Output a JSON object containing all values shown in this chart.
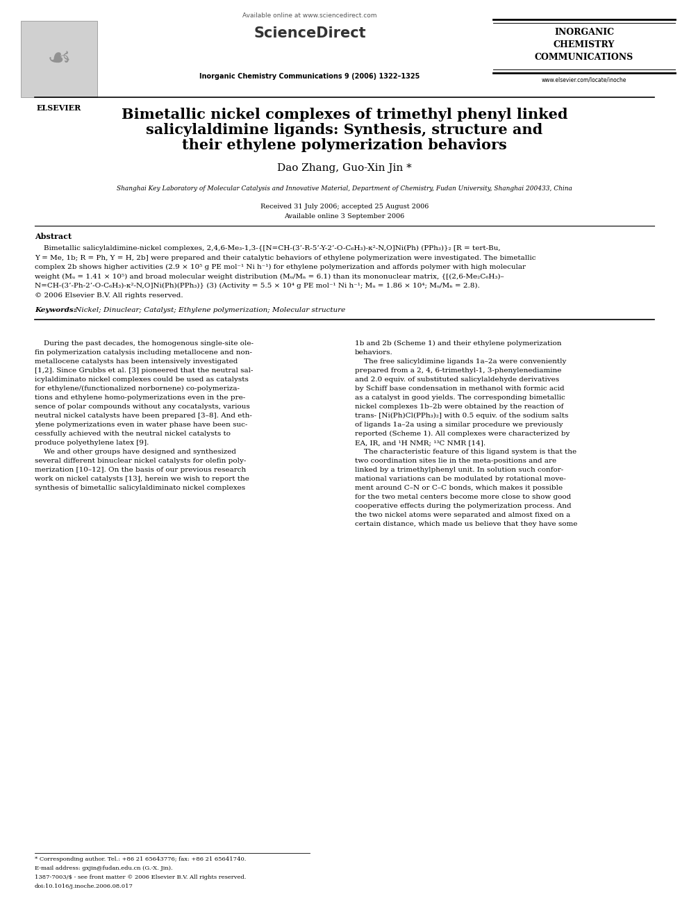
{
  "bg_color": "#ffffff",
  "page_width": 9.92,
  "page_height": 13.23,
  "dpi": 100,
  "header": {
    "available_online": "Available online at www.sciencedirect.com",
    "sciencedirect": "ScienceDirect",
    "journal_name": "Inorganic Chemistry Communications 9 (2006) 1322–1325",
    "elsevier": "ELSEVIER",
    "icc_line1": "INORGANIC",
    "icc_line2": "CHEMISTRY",
    "icc_line3": "COMMUNICATIONS",
    "website": "www.elsevier.com/locate/inoche"
  },
  "title_line1": "Bimetallic nickel complexes of trimethyl phenyl linked",
  "title_line2": "salicylaldimine ligands: Synthesis, structure and",
  "title_line3": "their ethylene polymerization behaviors",
  "authors": "Dao Zhang, Guo-Xin Jin *",
  "affiliation": "Shanghai Key Laboratory of Molecular Catalysis and Innovative Material, Department of Chemistry, Fudan University, Shanghai 200433, China",
  "received": "Received 31 July 2006; accepted 25 August 2006",
  "available_online_date": "Available online 3 September 2006",
  "abstract_title": "Abstract",
  "abstract_indent": "    Bimetallic salicylaldimine-nickel complexes, 2,4,6-Me₃-1,3-{[N=CH-(3’-R-5’-Y-2’-O-C₆H₃)-κ²-N,O]Ni(Ph) (PPh₃)}₂ [R = tert-Bu,\nY = Me, 1b; R = Ph, Y = H, 2b] were prepared and their catalytic behaviors of ethylene polymerization were investigated. The bimetallic\ncomplex 2b shows higher activities (2.9 × 10⁵ g PE mol⁻¹ Ni h⁻¹) for ethylene polymerization and affords polymer with high molecular\nweight (Mᵤ = 1.41 × 10⁵) and broad molecular weight distribution (Mᵤ/Mₙ = 6.1) than its mononuclear matrix, {[(2,6-Me₂C₆H₃)–\nN=CH-(3’-Ph-2’-O-C₆H₃)-κ²-N,O]Ni(Ph)(PPh₃)} (3) (Activity = 5.5 × 10⁴ g PE mol⁻¹ Ni h⁻¹; Mᵤ = 1.86 × 10⁴; Mᵤ/Mₙ = 2.8).\n© 2006 Elsevier B.V. All rights reserved.",
  "keywords_label": "Keywords: ",
  "keywords_text": " Nickel; Dinuclear; Catalyst; Ethylene polymerization; Molecular structure",
  "body_col1_lines": [
    "    During the past decades, the homogenous single-site ole-",
    "fin polymerization catalysis including metallocene and non-",
    "metallocene catalysts has been intensively investigated",
    "[1,2]. Since Grubbs et al. [3] pioneered that the neutral sal-",
    "icylaldiminato nickel complexes could be used as catalysts",
    "for ethylene/(functionalized norbornene) co-polymeriza-",
    "tions and ethylene homo-polymerizations even in the pre-",
    "sence of polar compounds without any cocatalysts, various",
    "neutral nickel catalysts have been prepared [3–8]. And eth-",
    "ylene polymerizations even in water phase have been suc-",
    "cessfully achieved with the neutral nickel catalysts to",
    "produce polyethylene latex [9].",
    "    We and other groups have designed and synthesized",
    "several different binuclear nickel catalysts for olefin poly-",
    "merization [10–12]. On the basis of our previous research",
    "work on nickel catalysts [13], herein we wish to report the",
    "synthesis of bimetallic salicylaldiminato nickel complexes"
  ],
  "body_col2_lines": [
    "1b and 2b (Scheme 1) and their ethylene polymerization",
    "behaviors.",
    "    The free salicyldimine ligands 1a–2a were conveniently",
    "prepared from a 2, 4, 6-trimethyl-1, 3-phenylenediamine",
    "and 2.0 equiv. of substituted salicylaldehyde derivatives",
    "by Schiff base condensation in methanol with formic acid",
    "as a catalyst in good yields. The corresponding bimetallic",
    "nickel complexes 1b–2b were obtained by the reaction of",
    "trans- [Ni(Ph)Cl(PPh₃)₂] with 0.5 equiv. of the sodium salts",
    "of ligands 1a–2a using a similar procedure we previously",
    "reported (Scheme 1). All complexes were characterized by",
    "EA, IR, and ¹H NMR; ¹³C NMR [14].",
    "    The characteristic feature of this ligand system is that the",
    "two coordination sites lie in the meta-positions and are",
    "linked by a trimethylphenyl unit. In solution such confor-",
    "mational variations can be modulated by rotational move-",
    "ment around C–N or C–C bonds, which makes it possible",
    "for the two metal centers become more close to show good",
    "cooperative effects during the polymerization process. And",
    "the two nickel atoms were separated and almost fixed on a",
    "certain distance, which made us believe that they have some"
  ],
  "footer_star": "* Corresponding author. Tel.: +86 21 65643776; fax: +86 21 65641740.",
  "footer_email": "E-mail address: gxjin@fudan.edu.cn (G.-X. Jin).",
  "footer_copy": "1387-7003/$ - see front matter © 2006 Elsevier B.V. All rights reserved.",
  "footer_doi": "doi:10.1016/j.inoche.2006.08.017"
}
